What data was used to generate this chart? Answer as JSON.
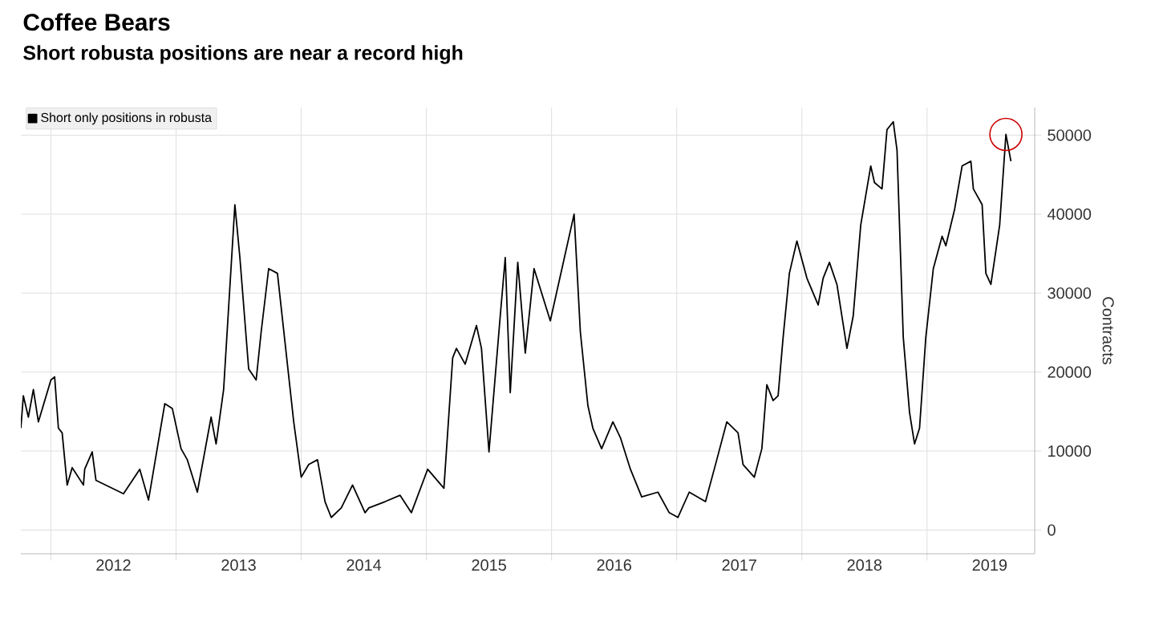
{
  "chart_data": {
    "type": "line",
    "title": "Coffee Bears",
    "subtitle": "Short robusta positions are near a record high",
    "ylabel": "Contracts",
    "x": [
      2011.76,
      2011.78,
      2011.82,
      2011.86,
      2011.9,
      2012.0,
      2012.03,
      2012.06,
      2012.09,
      2012.13,
      2012.17,
      2012.26,
      2012.27,
      2012.33,
      2012.36,
      2012.58,
      2012.71,
      2012.78,
      2012.91,
      2012.97,
      2013.04,
      2013.09,
      2013.17,
      2013.28,
      2013.32,
      2013.38,
      2013.47,
      2013.51,
      2013.58,
      2013.64,
      2013.68,
      2013.74,
      2013.81,
      2013.94,
      2014.0,
      2014.06,
      2014.13,
      2014.19,
      2014.24,
      2014.32,
      2014.41,
      2014.51,
      2014.54,
      2014.67,
      2014.79,
      2014.88,
      2015.01,
      2015.14,
      2015.21,
      2015.24,
      2015.31,
      2015.4,
      2015.44,
      2015.5,
      2015.59,
      2015.63,
      2015.67,
      2015.73,
      2015.79,
      2015.86,
      2015.99,
      2016.18,
      2016.23,
      2016.29,
      2016.33,
      2016.4,
      2016.49,
      2016.55,
      2016.63,
      2016.72,
      2016.85,
      2016.94,
      2017.01,
      2017.1,
      2017.23,
      2017.32,
      2017.4,
      2017.49,
      2017.53,
      2017.62,
      2017.68,
      2017.72,
      2017.77,
      2017.81,
      2017.85,
      2017.9,
      2017.96,
      2018.04,
      2018.13,
      2018.17,
      2018.22,
      2018.28,
      2018.36,
      2018.41,
      2018.47,
      2018.55,
      2018.58,
      2018.64,
      2018.68,
      2018.73,
      2018.76,
      2018.81,
      2018.86,
      2018.9,
      2018.94,
      2018.99,
      2019.05,
      2019.12,
      2019.15,
      2019.22,
      2019.28,
      2019.35,
      2019.37,
      2019.44,
      2019.47,
      2019.51,
      2019.58,
      2019.63,
      2019.67
    ],
    "series": [
      {
        "name": "Short only positions in robusta",
        "color": "#000000",
        "values": [
          12900,
          17000,
          14300,
          17800,
          13700,
          19000,
          19400,
          12900,
          12300,
          5700,
          7900,
          5700,
          7700,
          9900,
          6300,
          4600,
          7700,
          3800,
          16000,
          15400,
          10300,
          8900,
          4800,
          14300,
          10900,
          17800,
          41200,
          34500,
          20400,
          19000,
          25100,
          33100,
          32500,
          13700,
          6700,
          8300,
          8900,
          3600,
          1600,
          2800,
          5700,
          2200,
          2800,
          3600,
          4400,
          2200,
          7700,
          5300,
          21800,
          23000,
          21000,
          25900,
          23000,
          9900,
          27100,
          34500,
          17400,
          33900,
          22400,
          33100,
          26500,
          40000,
          25100,
          15800,
          12900,
          10300,
          13700,
          11700,
          7700,
          4200,
          4800,
          2200,
          1600,
          4800,
          3600,
          8900,
          13700,
          12300,
          8300,
          6700,
          10300,
          18400,
          16400,
          17000,
          24400,
          32500,
          36600,
          31900,
          28500,
          31900,
          33900,
          31100,
          23000,
          27100,
          38600,
          46100,
          44000,
          43200,
          50700,
          51700,
          48100,
          24400,
          14900,
          10900,
          12900,
          24400,
          33100,
          37200,
          36000,
          40600,
          46100,
          46700,
          43200,
          41200,
          32500,
          31100,
          38600,
          50100,
          46700
        ]
      }
    ],
    "xlim": [
      2011.76,
      2019.86
    ],
    "xticks": [
      {
        "value": 2012,
        "label": null
      },
      {
        "value": 2013,
        "label": null
      },
      {
        "value": 2014,
        "label": null
      },
      {
        "value": 2015,
        "label": null
      },
      {
        "value": 2016,
        "label": null
      },
      {
        "value": 2017,
        "label": null
      },
      {
        "value": 2018,
        "label": null
      },
      {
        "value": 2019,
        "label": null
      },
      {
        "value": 2012.5,
        "label": "2012"
      },
      {
        "value": 2013.5,
        "label": "2013"
      },
      {
        "value": 2014.5,
        "label": "2014"
      },
      {
        "value": 2015.5,
        "label": "2015"
      },
      {
        "value": 2016.5,
        "label": "2016"
      },
      {
        "value": 2017.5,
        "label": "2017"
      },
      {
        "value": 2018.5,
        "label": "2018"
      },
      {
        "value": 2019.5,
        "label": "2019"
      }
    ],
    "ylim": [
      -3000,
      53500
    ],
    "yticks": [
      0,
      10000,
      20000,
      30000,
      40000,
      50000
    ],
    "grid": true,
    "legend": "top left",
    "marker": "none",
    "line_style": "solid"
  }
}
